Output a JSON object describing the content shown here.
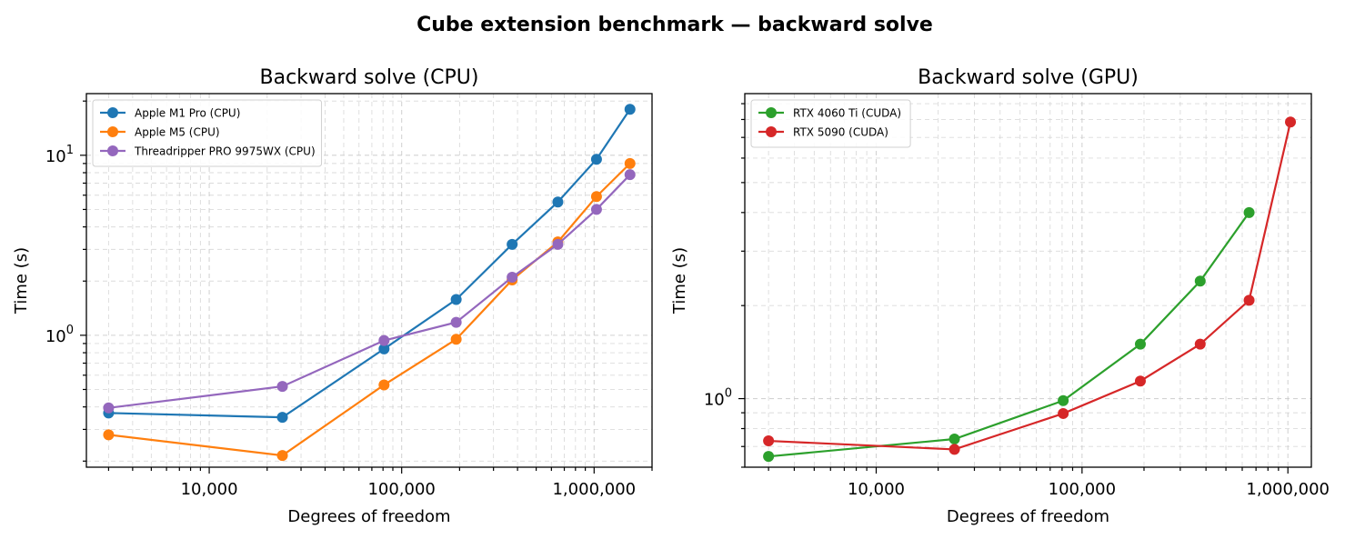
{
  "figure": {
    "suptitle": "Cube extension benchmark — backward solve"
  },
  "chart_data": [
    {
      "type": "line",
      "title": "Backward solve (CPU)",
      "xlabel": "Degrees of freedom",
      "ylabel": "Time (s)",
      "xscale": "log",
      "yscale": "log",
      "xlim": [
        2300,
        2000000
      ],
      "ylim": [
        0.185,
        22
      ],
      "xticks": [
        {
          "value": 10000,
          "label": "10,000"
        },
        {
          "value": 100000,
          "label": "100,000"
        },
        {
          "value": 1000000,
          "label": "1,000,000"
        }
      ],
      "yticks": [
        {
          "value": 1,
          "label": "10^0",
          "base": "10",
          "exp": "0"
        },
        {
          "value": 10,
          "label": "10^1",
          "base": "10",
          "exp": "1"
        }
      ],
      "grid": true,
      "legend_position": "top-left",
      "x": [
        3000,
        24000,
        81000,
        192000,
        375000,
        648000,
        1029000,
        1536000
      ],
      "series": [
        {
          "name": "Apple M1 Pro (CPU)",
          "color": "#1f77b4",
          "values": [
            0.37,
            0.35,
            0.84,
            1.58,
            3.2,
            5.5,
            9.5,
            18.0
          ]
        },
        {
          "name": "Apple M5 (CPU)",
          "color": "#ff7f0e",
          "values": [
            0.28,
            0.215,
            0.53,
            0.95,
            2.03,
            3.3,
            5.9,
            9.0
          ]
        },
        {
          "name": "Threadripper PRO 9975WX (CPU)",
          "color": "#9467bd",
          "values": [
            0.395,
            0.52,
            0.935,
            1.18,
            2.1,
            3.2,
            5.0,
            7.8
          ]
        }
      ]
    },
    {
      "type": "line",
      "title": "Backward solve (GPU)",
      "xlabel": "Degrees of freedom",
      "ylabel": "Time (s)",
      "xscale": "log",
      "yscale": "log",
      "xlim": [
        2300,
        1300000
      ],
      "ylim": [
        0.6,
        9.7
      ],
      "xticks": [
        {
          "value": 10000,
          "label": "10,000"
        },
        {
          "value": 100000,
          "label": "100,000"
        },
        {
          "value": 1000000,
          "label": "1,000,000"
        }
      ],
      "yticks": [
        {
          "value": 1,
          "label": "10^0",
          "base": "10",
          "exp": "0"
        }
      ],
      "grid": true,
      "legend_position": "top-left",
      "x": [
        3000,
        24000,
        81000,
        192000,
        375000,
        648000,
        1029000
      ],
      "series": [
        {
          "name": "RTX 4060 Ti (CUDA)",
          "color": "#2ca02c",
          "values": [
            0.65,
            0.74,
            0.985,
            1.5,
            2.4,
            4.0,
            null
          ]
        },
        {
          "name": "RTX 5090 (CUDA)",
          "color": "#d62728",
          "values": [
            0.73,
            0.685,
            0.895,
            1.14,
            1.5,
            2.08,
            7.85
          ]
        }
      ]
    }
  ]
}
